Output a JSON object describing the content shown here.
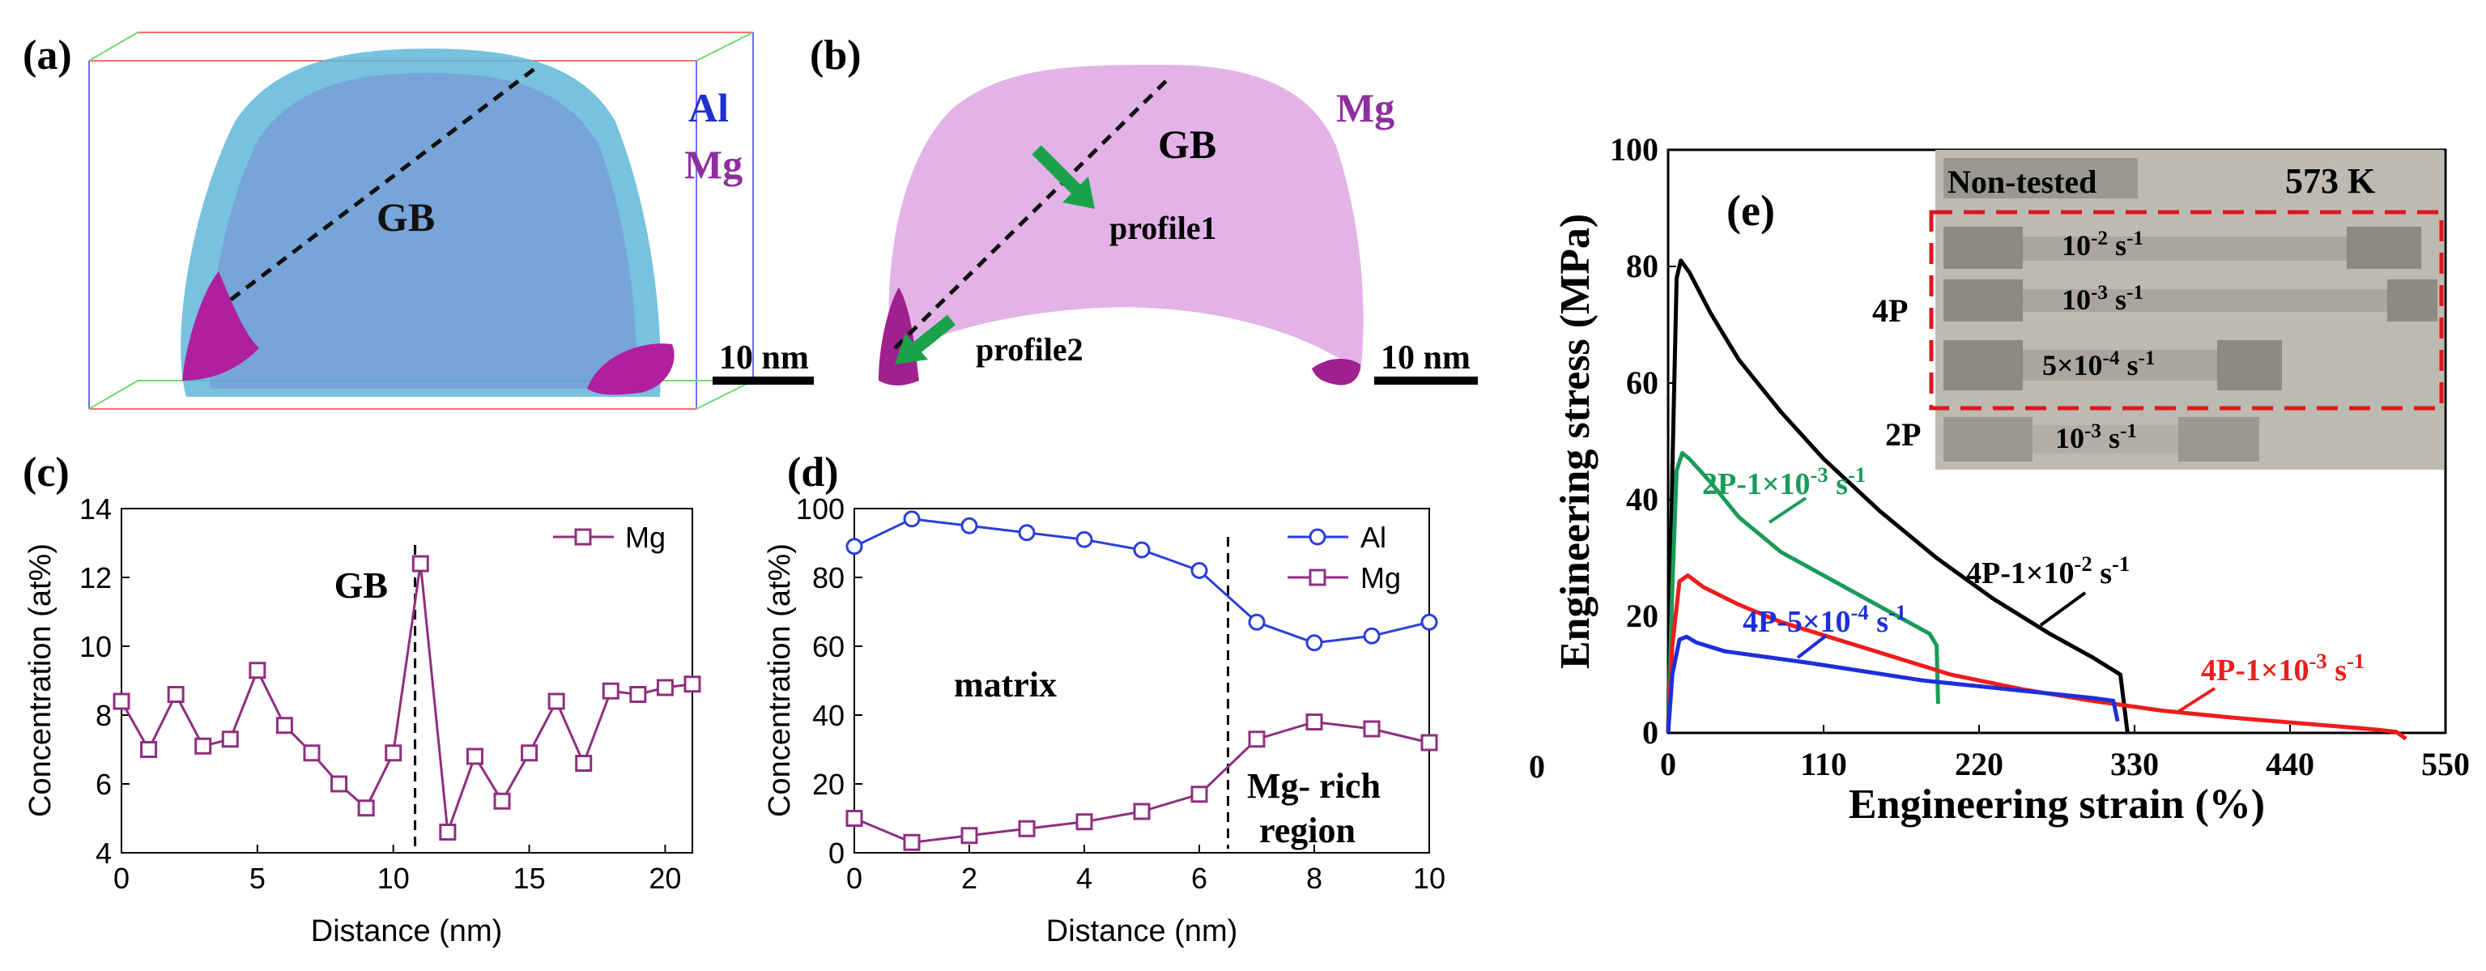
{
  "panels": {
    "a": {
      "letter": "(a)",
      "gb": "GB",
      "legend": [
        "Al",
        "Mg"
      ],
      "scale_bar": "10 nm",
      "colors": {
        "al": "#1f2fd0",
        "mg": "#8e2f9e"
      }
    },
    "b": {
      "letter": "(b)",
      "gb": "GB",
      "legend": [
        "Mg"
      ],
      "profile1": "profile1",
      "profile2": "profile2",
      "scale_bar": "10 nm"
    },
    "c": {
      "letter": "(c)"
    },
    "d": {
      "letter": "(d)",
      "matrix": "matrix",
      "mg_rich_1": "Mg- rich",
      "mg_rich_2": "region"
    },
    "e": {
      "letter": "(e)",
      "extra_tick": "0"
    }
  },
  "inset": {
    "non_tested": "Non-tested",
    "temperature": "573 K",
    "group_4p": "4P",
    "group_2p": "2P",
    "rates": [
      "10^-2 s^-1",
      "10^-3 s^-1",
      "5×10^-4 s^-1",
      "10^-3 s^-1"
    ]
  },
  "chart_data": [
    {
      "panel": "c",
      "type": "line",
      "xlabel": "Distance (nm)",
      "ylabel": "Concentration (at%)",
      "xlim": [
        0,
        21
      ],
      "ylim": [
        4,
        14
      ],
      "xticks": [
        0,
        5,
        10,
        15,
        20
      ],
      "yticks": [
        4,
        6,
        8,
        10,
        12,
        14
      ],
      "annotation": "GB",
      "gb_x": 10.8,
      "legend_position": "top-right",
      "series": [
        {
          "name": "Mg",
          "color": "#8e2f7e",
          "x": [
            0,
            1,
            2,
            3,
            4,
            5,
            6,
            7,
            8,
            9,
            10,
            11,
            12,
            13,
            14,
            15,
            16,
            17,
            18,
            19,
            20,
            21
          ],
          "y": [
            8.4,
            7.0,
            8.6,
            7.1,
            7.3,
            9.3,
            7.7,
            6.9,
            6.0,
            5.3,
            6.9,
            12.4,
            4.6,
            6.8,
            5.5,
            6.9,
            8.4,
            6.6,
            8.7,
            8.6,
            8.8,
            8.9
          ]
        }
      ]
    },
    {
      "panel": "d",
      "type": "line",
      "xlabel": "Distance (nm)",
      "ylabel": "Concentration (at%)",
      "xlim": [
        0,
        10
      ],
      "ylim": [
        0,
        100
      ],
      "xticks": [
        0,
        2,
        4,
        6,
        8,
        10
      ],
      "yticks": [
        0,
        20,
        40,
        60,
        80,
        100
      ],
      "boundary_x": 6.5,
      "legend_position": "top-right",
      "series": [
        {
          "name": "Al",
          "color": "#2a3fd8",
          "x": [
            0,
            1,
            2,
            3,
            4,
            5,
            6,
            7,
            8,
            9,
            10
          ],
          "y": [
            89,
            97,
            95,
            93,
            91,
            88,
            82,
            67,
            61,
            63,
            67
          ]
        },
        {
          "name": "Mg",
          "color": "#8e2f7e",
          "x": [
            0,
            1,
            2,
            3,
            4,
            5,
            6,
            7,
            8,
            9,
            10
          ],
          "y": [
            10,
            3,
            5,
            7,
            9,
            12,
            17,
            33,
            38,
            36,
            32
          ]
        }
      ]
    },
    {
      "panel": "e",
      "type": "line",
      "xlabel": "Engineering strain (%)",
      "ylabel": "Engineering stress (MPa)",
      "xlim": [
        0,
        550
      ],
      "ylim": [
        0,
        100
      ],
      "xticks": [
        0,
        110,
        220,
        330,
        440,
        550
      ],
      "yticks": [
        0,
        20,
        40,
        60,
        80,
        100
      ],
      "series": [
        {
          "name": "4P-1×10^-2 s^-1",
          "color": "#000000",
          "x": [
            0,
            3,
            6,
            9,
            15,
            30,
            50,
            80,
            110,
            150,
            190,
            230,
            270,
            300,
            320,
            325
          ],
          "y": [
            0,
            45,
            78,
            81,
            79,
            72,
            64,
            55,
            47,
            38,
            30,
            23,
            17,
            13,
            10,
            0
          ]
        },
        {
          "name": "2P-1×10^-3 s^-1",
          "color": "#1a9a5a",
          "x": [
            0,
            3,
            6,
            10,
            15,
            30,
            50,
            80,
            110,
            140,
            170,
            185,
            190,
            191
          ],
          "y": [
            0,
            25,
            45,
            48,
            47,
            43,
            37,
            31,
            27,
            23,
            19,
            17,
            15,
            5
          ]
        },
        {
          "name": "4P-1×10^-3 s^-1",
          "color": "#ee1c1c",
          "x": [
            0,
            3,
            8,
            14,
            25,
            50,
            80,
            120,
            160,
            200,
            250,
            300,
            350,
            400,
            450,
            500,
            515,
            522
          ],
          "y": [
            0,
            15,
            26,
            27,
            25,
            22,
            19,
            16,
            13,
            10,
            7.5,
            5.5,
            3.8,
            2.6,
            1.6,
            0.6,
            0.2,
            -1
          ]
        },
        {
          "name": "4P-5×10^-4 s^-1",
          "color": "#1c2fd8",
          "x": [
            0,
            3,
            8,
            13,
            20,
            40,
            70,
            100,
            140,
            180,
            220,
            260,
            300,
            315,
            318
          ],
          "y": [
            0,
            10,
            16,
            16.5,
            15.5,
            14,
            13,
            12,
            10.5,
            9,
            8,
            7,
            6,
            5.5,
            2
          ]
        }
      ]
    }
  ]
}
